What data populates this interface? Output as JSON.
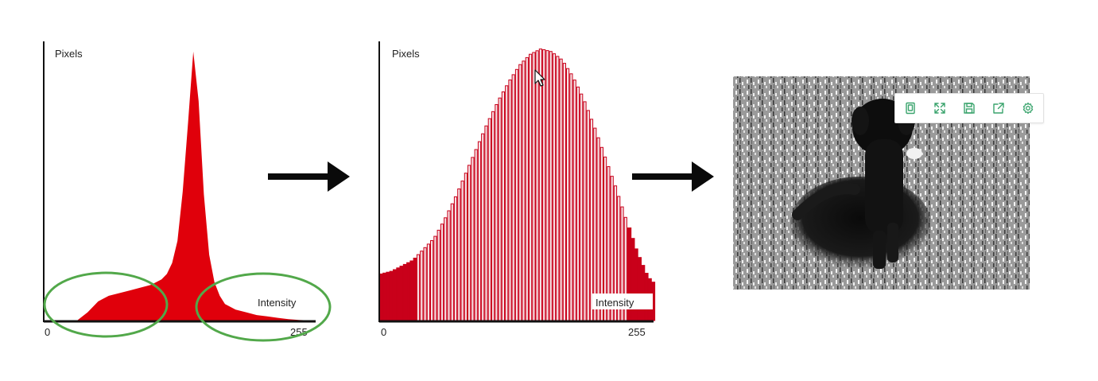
{
  "chart_data": [
    {
      "type": "area",
      "ylabel": "Pixels",
      "xlabel": "Intensity",
      "x_ticks": [
        "0",
        "255"
      ],
      "xlim": [
        0,
        255
      ],
      "ylim": [
        0,
        100
      ],
      "series": [
        {
          "x": [
            0,
            10,
            20,
            30,
            40,
            50,
            60,
            70,
            80,
            90,
            100,
            110,
            115,
            120,
            125,
            130,
            135,
            140,
            145,
            150,
            155,
            160,
            165,
            170,
            180,
            190,
            200,
            210,
            220,
            230,
            240,
            255
          ],
          "values": [
            0,
            0,
            0,
            0,
            3,
            7,
            9,
            10,
            11,
            12,
            13,
            15,
            17,
            21,
            29,
            47,
            72,
            98,
            80,
            46,
            24,
            14,
            9,
            6,
            4,
            3,
            2,
            1.5,
            1,
            0.5,
            0.2,
            0
          ],
          "color": "#e0000b"
        }
      ],
      "annotations": [
        "low-intensity-ellipse",
        "high-intensity-ellipse"
      ],
      "annotation_color": "#52a84a"
    },
    {
      "type": "bar",
      "ylabel": "Pixels",
      "xlabel": "Intensity",
      "x_ticks": [
        "0",
        "255"
      ],
      "xlim": [
        0,
        255
      ],
      "ylim": [
        0,
        100
      ],
      "series": [
        {
          "x": [
            0,
            10,
            20,
            30,
            40,
            50,
            60,
            70,
            80,
            90,
            100,
            110,
            120,
            130,
            140,
            150,
            160,
            170,
            180,
            190,
            200,
            210,
            220,
            230,
            240,
            250,
            255
          ],
          "values": [
            17,
            18,
            20,
            22,
            26,
            30,
            37,
            45,
            54,
            63,
            72,
            80,
            87,
            93,
            97,
            99,
            98,
            95,
            89,
            81,
            71,
            60,
            49,
            37,
            25,
            16,
            14
          ],
          "color": "#c9001a",
          "fill_color": "#f6dfe2"
        }
      ]
    }
  ],
  "arrow_color": "#0a0a0a",
  "toolbar": {
    "accent_color": "#3aa46d",
    "buttons": [
      {
        "name": "fit-page-button",
        "icon": "page-icon"
      },
      {
        "name": "fullscreen-button",
        "icon": "expand-icon"
      },
      {
        "name": "save-button",
        "icon": "save-icon"
      },
      {
        "name": "share-button",
        "icon": "share-icon"
      },
      {
        "name": "settings-button",
        "icon": "gear-icon"
      }
    ]
  }
}
